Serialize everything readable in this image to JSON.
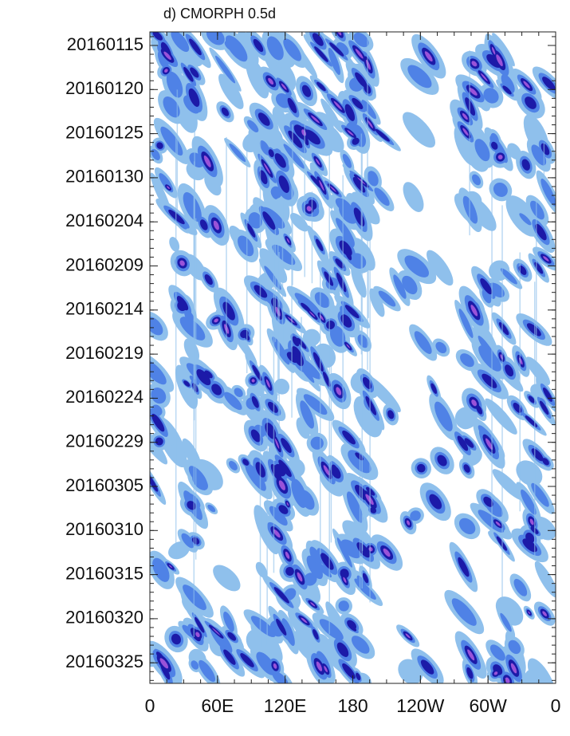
{
  "chart_data": {
    "type": "hovmoller",
    "title": "d) CMORPH 0.5d",
    "yticks": [
      "20160115",
      "20160120",
      "20160125",
      "20160130",
      "20160204",
      "20160209",
      "20160214",
      "20160219",
      "20160224",
      "20160229",
      "20160305",
      "20160310",
      "20160315",
      "20160320",
      "20160325"
    ],
    "xticks": [
      "0",
      "60E",
      "120E",
      "180",
      "120W",
      "60W",
      "0"
    ],
    "colors": [
      "#8fc0ec",
      "#4f82e6",
      "#1c1aa8",
      "#9a52d8"
    ]
  }
}
